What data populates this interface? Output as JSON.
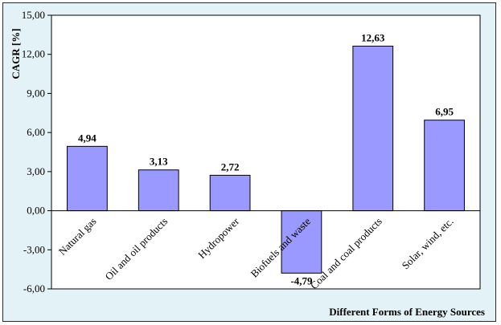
{
  "chart_data": {
    "type": "bar",
    "categories": [
      "Natural gas",
      "Oil and oil products",
      "Hydropower",
      "Biofuels and waste",
      "Coal and coal products",
      "Solar, wind, etc."
    ],
    "values": [
      4.94,
      3.13,
      2.72,
      -4.79,
      12.63,
      6.95
    ],
    "value_labels": [
      "4,94",
      "3,13",
      "2,72",
      "-4,79",
      "12,63",
      "6,95"
    ],
    "ylabel": "CAGR [%]",
    "xlabel": "Different Forms of Energy Sources",
    "ylim": [
      -6,
      15
    ],
    "yticks": [
      -6,
      -3,
      0,
      3,
      6,
      9,
      12,
      15
    ],
    "ytick_labels": [
      "-6,00",
      "-3,00",
      "0,00",
      "3,00",
      "6,00",
      "9,00",
      "12,00",
      "15,00"
    ],
    "grid": false,
    "colors": {
      "bar_fill": "#9999ff",
      "bar_stroke": "#000000",
      "plot_background": "#ffffff",
      "chart_background": "#e3f2f7"
    }
  }
}
